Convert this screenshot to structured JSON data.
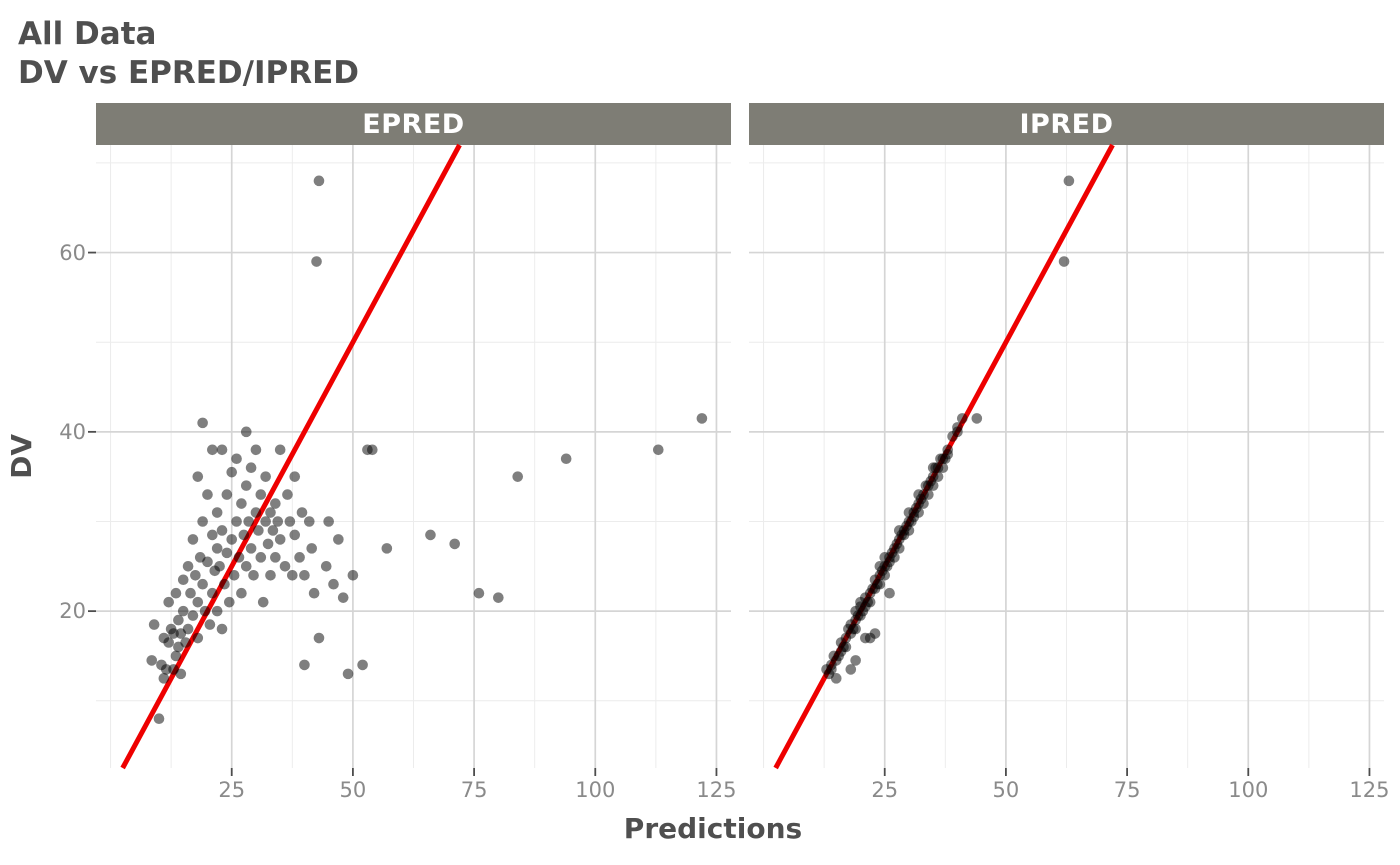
{
  "title": "All Data",
  "subtitle": "DV vs EPRED/IPRED",
  "axes": {
    "x_label": "Predictions",
    "y_label": "DV",
    "x_ticks": [
      25,
      50,
      75,
      100,
      125
    ],
    "y_ticks": [
      20,
      40,
      60
    ],
    "x_minor": [
      0,
      12.5,
      37.5,
      62.5,
      87.5,
      112.5
    ],
    "y_minor": [
      10,
      30,
      50,
      70
    ],
    "x_domain": [
      -3,
      128
    ],
    "y_domain": [
      2.5,
      72
    ],
    "grid": "on"
  },
  "colors": {
    "title_text": "#4f4f4f",
    "strip_bg": "#7e7d75",
    "strip_text": "#ffffff",
    "grid_major": "#d5d5d5",
    "grid_minor": "#ececec",
    "identity_line": "#ee0000",
    "point": "#000000",
    "point_alpha": 0.5,
    "tick": "#4d4d4d",
    "tick_label": "#8a8a8a",
    "panel_bg": "#ffffff"
  },
  "chart_data": [
    {
      "type": "scatter",
      "title": "EPRED",
      "xlabel": "Predictions",
      "ylabel": "DV",
      "identity_line": true,
      "xlim": [
        -3,
        128
      ],
      "ylim": [
        2.5,
        72
      ],
      "points": [
        [
          8.5,
          14.5
        ],
        [
          9,
          18.5
        ],
        [
          10,
          8
        ],
        [
          10.5,
          14
        ],
        [
          11,
          12.5
        ],
        [
          11,
          17
        ],
        [
          11.5,
          13.5
        ],
        [
          12,
          16.5
        ],
        [
          12,
          21
        ],
        [
          12.5,
          18
        ],
        [
          13,
          13.5
        ],
        [
          13,
          17.5
        ],
        [
          13.5,
          15
        ],
        [
          13.5,
          22
        ],
        [
          14,
          16
        ],
        [
          14,
          19
        ],
        [
          14.5,
          13
        ],
        [
          14.5,
          17.5
        ],
        [
          15,
          20
        ],
        [
          15,
          23.5
        ],
        [
          15.5,
          16.5
        ],
        [
          16,
          18
        ],
        [
          16,
          25
        ],
        [
          16.5,
          22
        ],
        [
          17,
          19.5
        ],
        [
          17,
          28
        ],
        [
          17.5,
          24
        ],
        [
          18,
          17
        ],
        [
          18,
          21
        ],
        [
          18,
          35
        ],
        [
          18.5,
          26
        ],
        [
          19,
          23
        ],
        [
          19,
          30
        ],
        [
          19,
          41
        ],
        [
          19.5,
          20
        ],
        [
          20,
          25.5
        ],
        [
          20,
          33
        ],
        [
          20.5,
          18.5
        ],
        [
          21,
          22
        ],
        [
          21,
          28.5
        ],
        [
          21,
          38
        ],
        [
          21.5,
          24.5
        ],
        [
          22,
          20
        ],
        [
          22,
          27
        ],
        [
          22,
          31
        ],
        [
          22.5,
          25
        ],
        [
          23,
          18
        ],
        [
          23,
          29
        ],
        [
          23,
          38
        ],
        [
          23.5,
          23
        ],
        [
          24,
          26.5
        ],
        [
          24,
          33
        ],
        [
          24.5,
          21
        ],
        [
          25,
          28
        ],
        [
          25,
          35.5
        ],
        [
          25.5,
          24
        ],
        [
          26,
          30
        ],
        [
          26,
          37
        ],
        [
          26.5,
          26
        ],
        [
          27,
          22
        ],
        [
          27,
          32
        ],
        [
          27.5,
          28.5
        ],
        [
          28,
          25
        ],
        [
          28,
          34
        ],
        [
          28,
          40
        ],
        [
          28.5,
          30
        ],
        [
          29,
          27
        ],
        [
          29,
          36
        ],
        [
          29.5,
          24
        ],
        [
          30,
          31
        ],
        [
          30,
          38
        ],
        [
          30.5,
          29
        ],
        [
          31,
          26
        ],
        [
          31,
          33
        ],
        [
          31.5,
          21
        ],
        [
          32,
          30
        ],
        [
          32,
          35
        ],
        [
          32.5,
          27.5
        ],
        [
          33,
          24
        ],
        [
          33,
          31
        ],
        [
          33.5,
          29
        ],
        [
          34,
          26
        ],
        [
          34,
          32
        ],
        [
          34.5,
          30
        ],
        [
          35,
          28
        ],
        [
          35,
          38
        ],
        [
          36,
          25
        ],
        [
          36.5,
          33
        ],
        [
          37,
          30
        ],
        [
          37.5,
          24
        ],
        [
          38,
          28.5
        ],
        [
          38,
          35
        ],
        [
          39,
          26
        ],
        [
          39.5,
          31
        ],
        [
          40,
          14
        ],
        [
          40,
          24
        ],
        [
          41,
          30
        ],
        [
          41.5,
          27
        ],
        [
          42,
          22
        ],
        [
          42.5,
          59
        ],
        [
          43,
          17
        ],
        [
          43,
          68
        ],
        [
          44.5,
          25
        ],
        [
          45,
          30
        ],
        [
          46,
          23
        ],
        [
          47,
          28
        ],
        [
          48,
          21.5
        ],
        [
          49,
          13
        ],
        [
          50,
          24
        ],
        [
          52,
          14
        ],
        [
          53,
          38
        ],
        [
          54,
          38
        ],
        [
          57,
          27
        ],
        [
          66,
          28.5
        ],
        [
          71,
          27.5
        ],
        [
          76,
          22
        ],
        [
          80,
          21.5
        ],
        [
          84,
          35
        ],
        [
          94,
          37
        ],
        [
          113,
          38
        ],
        [
          122,
          41.5
        ]
      ]
    },
    {
      "type": "scatter",
      "title": "IPRED",
      "xlabel": "Predictions",
      "ylabel": "DV",
      "identity_line": true,
      "xlim": [
        -3,
        128
      ],
      "ylim": [
        2.5,
        72
      ],
      "points": [
        [
          13,
          13.5
        ],
        [
          13.5,
          13
        ],
        [
          14,
          14
        ],
        [
          14,
          13.5
        ],
        [
          14.5,
          15
        ],
        [
          15,
          14.5
        ],
        [
          15,
          12.5
        ],
        [
          15.5,
          15
        ],
        [
          16,
          16.5
        ],
        [
          16,
          15.5
        ],
        [
          16.5,
          16
        ],
        [
          17,
          17
        ],
        [
          17,
          16
        ],
        [
          17.5,
          18
        ],
        [
          18,
          17.5
        ],
        [
          18,
          18.5
        ],
        [
          18,
          13.5
        ],
        [
          18.5,
          18
        ],
        [
          19,
          19
        ],
        [
          19,
          18
        ],
        [
          19,
          20
        ],
        [
          19,
          14.5
        ],
        [
          19.5,
          19.5
        ],
        [
          20,
          19.5
        ],
        [
          20,
          20.5
        ],
        [
          20,
          21
        ],
        [
          20.5,
          20
        ],
        [
          21,
          20.5
        ],
        [
          21,
          21.5
        ],
        [
          21,
          17
        ],
        [
          21.5,
          21
        ],
        [
          22,
          22
        ],
        [
          22,
          21
        ],
        [
          22,
          17
        ],
        [
          22.5,
          22.5
        ],
        [
          23,
          22.5
        ],
        [
          23,
          23.5
        ],
        [
          23,
          17.5
        ],
        [
          23.5,
          23
        ],
        [
          24,
          24
        ],
        [
          24,
          23
        ],
        [
          24,
          25
        ],
        [
          24.5,
          24.5
        ],
        [
          25,
          25
        ],
        [
          25,
          24
        ],
        [
          25,
          26
        ],
        [
          25.5,
          25
        ],
        [
          26,
          26
        ],
        [
          26,
          25.5
        ],
        [
          26,
          22
        ],
        [
          26.5,
          26.5
        ],
        [
          27,
          27
        ],
        [
          27,
          26
        ],
        [
          27.5,
          27.5
        ],
        [
          28,
          28
        ],
        [
          28,
          27
        ],
        [
          28,
          29
        ],
        [
          28.5,
          28.5
        ],
        [
          29,
          29
        ],
        [
          29,
          28.5
        ],
        [
          29.5,
          29.5
        ],
        [
          30,
          30
        ],
        [
          30,
          29
        ],
        [
          30,
          31
        ],
        [
          30.5,
          30
        ],
        [
          31,
          31
        ],
        [
          31,
          30.5
        ],
        [
          31.5,
          31.5
        ],
        [
          32,
          32
        ],
        [
          32,
          31
        ],
        [
          32,
          33
        ],
        [
          32.5,
          32.5
        ],
        [
          33,
          33
        ],
        [
          33,
          32
        ],
        [
          33.5,
          34
        ],
        [
          34,
          34
        ],
        [
          34,
          33
        ],
        [
          34.5,
          34.5
        ],
        [
          35,
          35
        ],
        [
          35,
          34
        ],
        [
          35,
          36
        ],
        [
          35.5,
          36
        ],
        [
          36,
          36
        ],
        [
          36,
          35
        ],
        [
          36.5,
          37
        ],
        [
          37,
          37
        ],
        [
          37,
          36
        ],
        [
          37.5,
          37
        ],
        [
          38,
          38
        ],
        [
          38,
          37.5
        ],
        [
          39,
          39.5
        ],
        [
          40,
          40
        ],
        [
          40,
          40.5
        ],
        [
          41,
          41.5
        ],
        [
          44,
          41.5
        ],
        [
          62,
          59
        ],
        [
          63,
          68
        ]
      ]
    }
  ]
}
